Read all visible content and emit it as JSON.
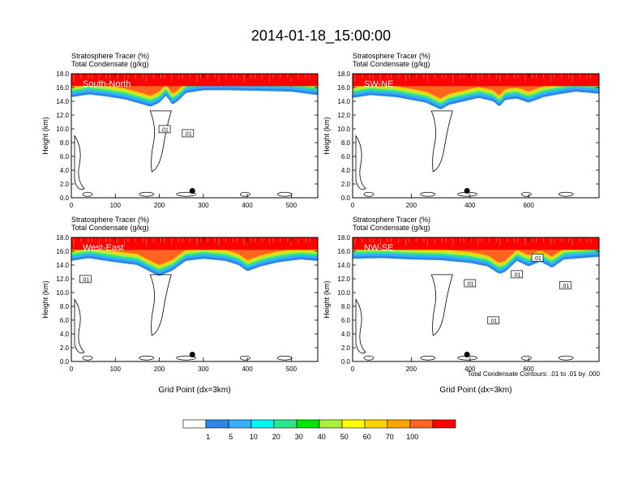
{
  "figure": {
    "title": "2014-01-18_15:00:00",
    "contour_note": "Total Condensate Contours: .01 to .01 by .000"
  },
  "colorbar": {
    "colors": [
      "#ffffff",
      "#2e86e6",
      "#35aefc",
      "#00f5f5",
      "#2de68c",
      "#00e600",
      "#aaf03c",
      "#ffff00",
      "#ffd200",
      "#ffa500",
      "#ff6420",
      "#ff0000"
    ],
    "labels": [
      "1",
      "5",
      "10",
      "20",
      "30",
      "40",
      "50",
      "60",
      "70",
      "100"
    ]
  },
  "chart_data": [
    {
      "type": "heatmap",
      "panel": "South-North",
      "title_line1": "Stratosphere Tracer   (%)",
      "title_line2": "Total Condensate   (g/kg)",
      "ylabel": "Height (km)",
      "xlabel": "",
      "ylim": [
        0,
        18
      ],
      "yticks": [
        "0.0",
        "2.0",
        "4.0",
        "6.0",
        "8.0",
        "10.0",
        "12.0",
        "14.0",
        "16.0",
        "18.0"
      ],
      "xlim": [
        0,
        560
      ],
      "xticks": [
        {
          "v": 0,
          "label": "0"
        },
        {
          "v": 100,
          "label": "100"
        },
        {
          "v": 200,
          "label": "200"
        },
        {
          "v": 300,
          "label": "300"
        },
        {
          "v": 400,
          "label": "400"
        },
        {
          "v": 500,
          "label": "500"
        }
      ],
      "tropopause_km": [
        [
          0,
          14.6
        ],
        [
          40,
          15.0
        ],
        [
          80,
          14.7
        ],
        [
          120,
          14.3
        ],
        [
          160,
          13.6
        ],
        [
          180,
          13.2
        ],
        [
          200,
          13.8
        ],
        [
          215,
          14.8
        ],
        [
          230,
          13.5
        ],
        [
          245,
          14.2
        ],
        [
          260,
          15.2
        ],
        [
          300,
          15.6
        ],
        [
          360,
          15.6
        ],
        [
          440,
          15.5
        ],
        [
          500,
          15.4
        ],
        [
          560,
          14.9
        ]
      ],
      "marker_x": 275,
      "contour_labels": [
        {
          "x": 212,
          "y": 9.9,
          "text": ".01"
        },
        {
          "x": 265,
          "y": 9.3,
          "text": ".01"
        }
      ]
    },
    {
      "type": "heatmap",
      "panel": "SW-NE",
      "title_line1": "Stratosphere Tracer   (%)",
      "title_line2": "Total Condensate   (g/kg)",
      "ylabel": "Height (km)",
      "xlabel": "",
      "ylim": [
        0,
        18
      ],
      "yticks": [
        "0.0",
        "2.0",
        "4.0",
        "6.0",
        "8.0",
        "10.0",
        "12.0",
        "14.0",
        "16.0",
        "18.0"
      ],
      "xlim": [
        0,
        840
      ],
      "xticks": [
        {
          "v": 0,
          "label": "0"
        },
        {
          "v": 200,
          "label": "200"
        },
        {
          "v": 400,
          "label": "400"
        },
        {
          "v": 600,
          "label": "600"
        }
      ],
      "tropopause_km": [
        [
          0,
          14.5
        ],
        [
          60,
          14.9
        ],
        [
          150,
          14.6
        ],
        [
          200,
          14.2
        ],
        [
          250,
          13.8
        ],
        [
          300,
          12.8
        ],
        [
          330,
          13.5
        ],
        [
          380,
          14.0
        ],
        [
          430,
          14.5
        ],
        [
          480,
          14.0
        ],
        [
          500,
          13.2
        ],
        [
          520,
          14.2
        ],
        [
          560,
          14.4
        ],
        [
          600,
          13.8
        ],
        [
          650,
          14.6
        ],
        [
          700,
          15.0
        ],
        [
          760,
          15.4
        ],
        [
          840,
          15.1
        ]
      ],
      "marker_x": 390,
      "contour_labels": []
    },
    {
      "type": "heatmap",
      "panel": "West-East",
      "title_line1": "Stratosphere Tracer   (%)",
      "title_line2": "Total Condensate   (g/kg)",
      "ylabel": "Height (km)",
      "xlabel": "Grid Point (dx=3km)",
      "ylim": [
        0,
        18
      ],
      "yticks": [
        "0.0",
        "2.0",
        "4.0",
        "6.0",
        "8.0",
        "10.0",
        "12.0",
        "14.0",
        "16.0",
        "18.0"
      ],
      "xlim": [
        0,
        560
      ],
      "xticks": [
        {
          "v": 0,
          "label": "0"
        },
        {
          "v": 100,
          "label": "100"
        },
        {
          "v": 200,
          "label": "200"
        },
        {
          "v": 300,
          "label": "300"
        },
        {
          "v": 400,
          "label": "400"
        },
        {
          "v": 500,
          "label": "500"
        }
      ],
      "tropopause_km": [
        [
          0,
          14.6
        ],
        [
          40,
          15.0
        ],
        [
          100,
          14.4
        ],
        [
          150,
          14.0
        ],
        [
          180,
          13.0
        ],
        [
          200,
          12.4
        ],
        [
          230,
          13.2
        ],
        [
          260,
          14.6
        ],
        [
          300,
          14.9
        ],
        [
          350,
          14.6
        ],
        [
          380,
          14.0
        ],
        [
          400,
          13.1
        ],
        [
          430,
          13.8
        ],
        [
          470,
          14.4
        ],
        [
          520,
          14.8
        ],
        [
          560,
          14.6
        ]
      ],
      "marker_x": 275,
      "contour_labels": [
        {
          "x": 32,
          "y": 11.9,
          "text": ".01"
        }
      ]
    },
    {
      "type": "heatmap",
      "panel": "NW-SE",
      "title_line1": "Stratosphere Tracer   (%)",
      "title_line2": "Total Condensate   (g/kg)",
      "ylabel": "Height (km)",
      "xlabel": "Grid Point (dx=3km)",
      "ylim": [
        0,
        18
      ],
      "yticks": [
        "0.0",
        "2.0",
        "4.0",
        "6.0",
        "8.0",
        "10.0",
        "12.0",
        "14.0",
        "16.0",
        "18.0"
      ],
      "xlim": [
        0,
        840
      ],
      "xticks": [
        {
          "v": 0,
          "label": "0"
        },
        {
          "v": 200,
          "label": "200"
        },
        {
          "v": 400,
          "label": "400"
        },
        {
          "v": 600,
          "label": "600"
        }
      ],
      "tropopause_km": [
        [
          0,
          14.9
        ],
        [
          100,
          15.0
        ],
        [
          200,
          14.8
        ],
        [
          300,
          14.7
        ],
        [
          400,
          14.3
        ],
        [
          460,
          13.8
        ],
        [
          500,
          12.7
        ],
        [
          520,
          13.0
        ],
        [
          560,
          14.6
        ],
        [
          600,
          13.8
        ],
        [
          640,
          14.5
        ],
        [
          680,
          13.6
        ],
        [
          720,
          14.8
        ],
        [
          780,
          15.0
        ],
        [
          840,
          15.2
        ]
      ],
      "marker_x": 390,
      "contour_labels": [
        {
          "x": 400,
          "y": 11.3,
          "text": ".01"
        },
        {
          "x": 560,
          "y": 12.6,
          "text": ".01"
        },
        {
          "x": 480,
          "y": 5.9,
          "text": ".01"
        },
        {
          "x": 630,
          "y": 15.0,
          "text": ".01"
        },
        {
          "x": 725,
          "y": 11.0,
          "text": ".01"
        }
      ]
    }
  ]
}
